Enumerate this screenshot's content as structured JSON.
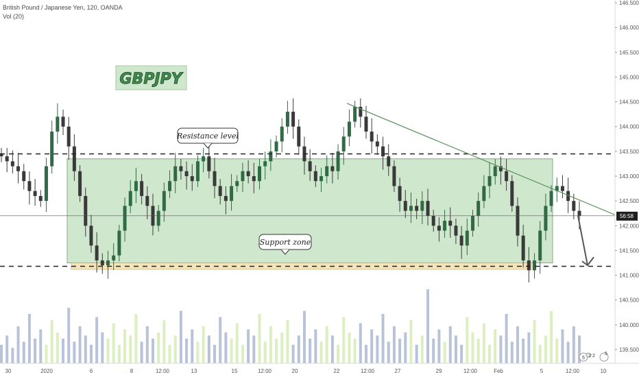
{
  "header": {
    "symbol_line": "British Pound / Japanese Yen, 120, OANDA",
    "indicator_line": "Vol (20)"
  },
  "chart_data": {
    "type": "candlestick",
    "title": "GBPJPY",
    "x_ticks": [
      "30",
      "2020",
      "6",
      "8",
      "12:00",
      "13",
      "15",
      "12:00",
      "20",
      "22",
      "12:00",
      "27",
      "29",
      "12:00",
      "Feb",
      "5",
      "12:00",
      "10"
    ],
    "y_ticks": [
      "146.500",
      "146.000",
      "145.500",
      "145.000",
      "144.500",
      "144.000",
      "143.500",
      "143.000",
      "142.500",
      "142.000",
      "141.500",
      "141.000",
      "140.500",
      "140.000",
      "139.500"
    ],
    "ylim": [
      139.3,
      146.55
    ],
    "last_price_label": "56:58",
    "last_price": 142.2,
    "resistance_level": 143.45,
    "support_level": 141.18,
    "annotations": [
      "Resistance level",
      "Support zone"
    ],
    "zone_range": [
      141.25,
      143.35
    ],
    "support_zone_range": [
      141.12,
      141.25
    ],
    "trendline": {
      "start": 144.47,
      "end": 142.22
    },
    "projection": {
      "from": 142.2,
      "to": 141.2
    },
    "close_series": [
      143.4,
      143.3,
      143.2,
      143.1,
      142.9,
      142.7,
      142.6,
      142.5,
      143.2,
      143.9,
      144.2,
      144.0,
      143.6,
      143.1,
      142.6,
      142.0,
      141.6,
      141.3,
      141.2,
      141.3,
      141.4,
      141.9,
      142.4,
      142.7,
      142.9,
      142.6,
      142.4,
      142.0,
      142.3,
      142.7,
      142.9,
      143.2,
      143.1,
      143.0,
      142.9,
      143.3,
      143.4,
      143.1,
      142.8,
      142.6,
      142.5,
      142.8,
      142.9,
      143.1,
      143.0,
      142.9,
      143.2,
      143.3,
      143.5,
      143.7,
      144.0,
      144.3,
      144.0,
      143.6,
      143.3,
      143.1,
      142.9,
      143.0,
      143.2,
      143.1,
      143.5,
      143.8,
      144.1,
      144.4,
      144.2,
      143.9,
      143.7,
      143.6,
      143.4,
      143.2,
      142.8,
      142.5,
      142.3,
      142.4,
      142.3,
      142.5,
      142.2,
      142.0,
      141.9,
      142.1,
      142.0,
      141.8,
      141.6,
      141.9,
      142.2,
      142.5,
      142.8,
      143.0,
      143.2,
      143.1,
      142.9,
      142.4,
      141.8,
      141.3,
      141.1,
      141.3,
      141.9,
      142.4,
      142.7,
      142.8,
      142.7,
      142.5,
      142.3,
      142.2
    ],
    "volume_series": [
      30,
      45,
      25,
      60,
      35,
      80,
      40,
      55,
      30,
      70,
      50,
      40,
      90,
      35,
      60,
      45,
      30,
      75,
      50,
      40,
      65,
      30,
      55,
      45,
      80,
      35,
      60,
      40,
      50,
      70,
      30,
      45,
      85,
      40,
      55,
      35,
      60,
      45,
      30,
      75,
      50,
      40,
      65,
      30,
      55,
      45,
      80,
      35,
      60,
      40,
      50,
      70,
      30,
      45,
      85,
      40,
      55,
      35,
      60,
      45,
      30,
      75,
      50,
      40,
      65,
      30,
      55,
      45,
      80,
      35,
      60,
      40,
      50,
      70,
      30,
      45,
      120,
      40,
      55,
      35,
      60,
      45,
      30,
      75,
      50,
      40,
      65,
      30,
      55,
      45,
      80,
      35,
      60,
      40,
      50,
      70,
      30,
      45,
      85,
      40,
      55,
      35,
      60,
      45
    ],
    "colors": {
      "up": "#2f6b45",
      "down": "#3a3a3a",
      "zone": "#bfe1bd",
      "zone_border": "#5b8f5b",
      "support_zone": "#f3dfa8",
      "trendline": "#5b8f5b",
      "volume_up": "#cfe7a5",
      "volume_down": "#9aa8c8"
    },
    "grid": false
  },
  "badges": {
    "b1": "5",
    "b2": "2",
    "b3": "2",
    "b4": "5"
  }
}
